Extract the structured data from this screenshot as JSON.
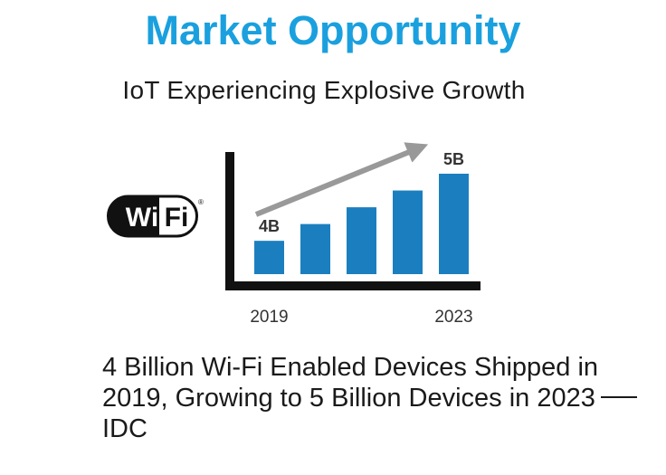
{
  "slide": {
    "title": "Market Opportunity",
    "subtitle": "IoT Experiencing Explosive Growth",
    "caption_main": "4 Billion Wi-Fi Enabled Devices Shipped in 2019, Growing to 5 Billion Devices in 2023",
    "caption_source": "IDC",
    "colors": {
      "title": "#1aa0de",
      "bar": "#1b7fbf",
      "arrow": "#999999",
      "axis": "#111111"
    }
  },
  "logo": {
    "text_left": "Wi",
    "text_right": "Fi",
    "mark": "®"
  },
  "chart_data": {
    "type": "bar",
    "categories": [
      "2019",
      "",
      "",
      "",
      "2023"
    ],
    "x_tick_labels": [
      "2019",
      "2023"
    ],
    "values": [
      4.0,
      4.25,
      4.5,
      4.75,
      5.0
    ],
    "value_unit": "B",
    "data_labels": [
      "4B",
      "",
      "",
      "",
      "5B"
    ],
    "trend_arrow": true,
    "title": "",
    "xlabel": "",
    "ylabel": ""
  }
}
